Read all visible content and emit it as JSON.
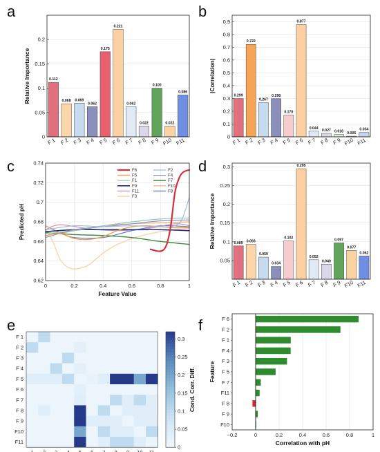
{
  "chart_data": [
    {
      "panel": "a",
      "type": "bar",
      "ylabel": "Relative Importance",
      "ylim": [
        0,
        0.25
      ],
      "yticks": [
        0,
        0.05,
        0.1,
        0.15,
        0.2
      ],
      "categories": [
        "F 1",
        "F 2",
        "F 3",
        "F 4",
        "F 5",
        "F 6",
        "F 7",
        "F 8",
        "F 9",
        "F10",
        "F11"
      ],
      "values": [
        0.112,
        0.068,
        0.069,
        0.062,
        0.175,
        0.221,
        0.062,
        0.022,
        0.1,
        0.022,
        0.086
      ],
      "labels": [
        "0.112",
        "0.068",
        "0.069",
        "0.062",
        "0.175",
        "0.221",
        "0.062",
        "0.022",
        "0.100",
        "0.022",
        "0.086"
      ],
      "colors": [
        "#e0707e",
        "#fcd6a8",
        "#c6dbee",
        "#8a8fbb",
        "#e8606e",
        "#fcd0a0",
        "#dfeaf4",
        "#dad7ea",
        "#62a45c",
        "#fbd2a0",
        "#6f8fe4"
      ],
      "grid": true
    },
    {
      "panel": "b",
      "type": "bar",
      "ylabel": "|Correlation|",
      "ylim": [
        0,
        0.95
      ],
      "yticks": [
        0,
        0.1,
        0.2,
        0.3,
        0.4,
        0.5,
        0.6,
        0.7,
        0.8,
        0.9
      ],
      "categories": [
        "F 1",
        "F 2",
        "F 3",
        "F 4",
        "F 5",
        "F 6",
        "F 7",
        "F 8",
        "F 9",
        "F10",
        "F11"
      ],
      "values": [
        0.299,
        0.722,
        0.267,
        0.298,
        0.17,
        0.877,
        0.044,
        0.027,
        0.018,
        0.005,
        0.034
      ],
      "labels": [
        "0.299",
        "0.722",
        "0.267",
        "0.298",
        "0.170",
        "0.877",
        "0.044",
        "0.027",
        "0.018",
        "0.005",
        "0.034"
      ],
      "colors": [
        "#e0707e",
        "#f6a455",
        "#c6dbee",
        "#8a8fbb",
        "#f8cccc",
        "#fcd0a0",
        "#dfeaf4",
        "#dad7ea",
        "#d9efd6",
        "#fbd9b0",
        "#c6d4f4"
      ],
      "grid": true
    },
    {
      "panel": "c",
      "type": "line",
      "xlabel": "Feature Value",
      "ylabel": "Predicted pH",
      "xlim": [
        0,
        1
      ],
      "ylim": [
        0.62,
        0.74
      ],
      "xticks": [
        0,
        0.2,
        0.4,
        0.6,
        0.8,
        1
      ],
      "yticks": [
        0.62,
        0.64,
        0.66,
        0.68,
        0.7,
        0.72,
        0.74
      ],
      "legend_position": "top-right",
      "legend_order": [
        "F6",
        "F2",
        "F5",
        "F4",
        "F1",
        "F7",
        "F9",
        "F10",
        "F11",
        "F8",
        "F3"
      ],
      "series": [
        {
          "name": "F6",
          "color": "#d4313c",
          "width": 2.2,
          "x": [
            0.73,
            0.8,
            0.84,
            0.87,
            0.9,
            0.93,
            0.96,
            1.0
          ],
          "y": [
            0.652,
            0.65,
            0.656,
            0.675,
            0.71,
            0.725,
            0.731,
            0.733
          ]
        },
        {
          "name": "F2",
          "color": "#9bbde0",
          "width": 1.2,
          "x": [
            0.0,
            0.2,
            0.4,
            0.6,
            0.8,
            0.9,
            0.95,
            1.0
          ],
          "y": [
            0.672,
            0.676,
            0.675,
            0.676,
            0.675,
            0.676,
            0.683,
            0.705
          ]
        },
        {
          "name": "F5",
          "color": "#f49a4d",
          "width": 1.4,
          "x": [
            0.0,
            0.1,
            0.2,
            0.3,
            0.4,
            0.5,
            0.6,
            0.7,
            0.8,
            0.9,
            1.0
          ],
          "y": [
            0.666,
            0.668,
            0.663,
            0.662,
            0.665,
            0.671,
            0.675,
            0.676,
            0.675,
            0.674,
            0.674
          ]
        },
        {
          "name": "F4",
          "color": "#8a8fbb",
          "width": 1.2,
          "x": [
            0.0,
            0.2,
            0.4,
            0.6,
            0.8,
            1.0
          ],
          "y": [
            0.664,
            0.672,
            0.675,
            0.678,
            0.681,
            0.682
          ]
        },
        {
          "name": "F1",
          "color": "#8fc8c0",
          "width": 1.2,
          "x": [
            0.0,
            0.2,
            0.4,
            0.6,
            0.8,
            1.0
          ],
          "y": [
            0.668,
            0.671,
            0.676,
            0.68,
            0.683,
            0.684
          ]
        },
        {
          "name": "F7",
          "color": "#3d8a3d",
          "width": 1.4,
          "x": [
            0.0,
            0.2,
            0.4,
            0.6,
            0.8,
            1.0
          ],
          "y": [
            0.669,
            0.667,
            0.666,
            0.664,
            0.66,
            0.657
          ]
        },
        {
          "name": "F9",
          "color": "#1f2f7a",
          "width": 1.6,
          "x": [
            0.0,
            0.2,
            0.4,
            0.6,
            0.8,
            1.0
          ],
          "y": [
            0.67,
            0.672,
            0.672,
            0.672,
            0.672,
            0.671
          ]
        },
        {
          "name": "F10",
          "color": "#f0a868",
          "width": 1.2,
          "x": [
            0.0,
            0.1,
            0.2,
            0.4,
            0.6,
            0.8,
            1.0
          ],
          "y": [
            0.676,
            0.669,
            0.671,
            0.676,
            0.678,
            0.679,
            0.68
          ]
        },
        {
          "name": "F11",
          "color": "#d98cae",
          "width": 1.2,
          "x": [
            0.0,
            0.1,
            0.3,
            0.5,
            0.7,
            0.9,
            1.0
          ],
          "y": [
            0.672,
            0.677,
            0.673,
            0.671,
            0.673,
            0.678,
            0.676
          ]
        },
        {
          "name": "F8",
          "color": "#5a78d4",
          "width": 1.2,
          "x": [
            0.0,
            0.1,
            0.2,
            0.4,
            0.6,
            0.8,
            1.0
          ],
          "y": [
            0.676,
            0.669,
            0.664,
            0.664,
            0.671,
            0.676,
            0.675
          ]
        },
        {
          "name": "F3",
          "color": "#fbd4a8",
          "width": 1.4,
          "x": [
            0.0,
            0.05,
            0.1,
            0.15,
            0.2,
            0.25,
            0.3,
            0.35,
            0.4,
            0.45,
            0.5,
            0.55,
            0.6,
            0.7,
            0.8,
            0.9,
            1.0
          ],
          "y": [
            0.673,
            0.66,
            0.642,
            0.634,
            0.632,
            0.633,
            0.636,
            0.642,
            0.648,
            0.653,
            0.657,
            0.66,
            0.663,
            0.667,
            0.67,
            0.672,
            0.673
          ]
        }
      ],
      "grid": true
    },
    {
      "panel": "d",
      "type": "bar",
      "ylabel": "Relative Importance",
      "ylim": [
        0,
        0.31
      ],
      "yticks": [
        0.05,
        0.1,
        0.15,
        0.2,
        0.25,
        0.3
      ],
      "categories": [
        "F 1",
        "F 2",
        "F 3",
        "F 4",
        "F 5",
        "F 6",
        "F 7",
        "F 8",
        "F 9",
        "F10",
        "F11"
      ],
      "values": [
        0.089,
        0.093,
        0.059,
        0.034,
        0.102,
        0.295,
        0.052,
        0.04,
        0.097,
        0.077,
        0.062
      ],
      "labels": [
        "0.089",
        "0.093",
        "0.059",
        "0.034",
        "0.102",
        "0.295",
        "0.052",
        "0.040",
        "0.097",
        "0.077",
        "0.062"
      ],
      "colors": [
        "#e0707e",
        "#fcd6a8",
        "#c6dbee",
        "#8a8fbb",
        "#f8cccc",
        "#fcd0a0",
        "#dfeaf4",
        "#dad7ea",
        "#62a45c",
        "#fbd2a0",
        "#6f8fe4"
      ],
      "grid": true
    },
    {
      "panel": "e",
      "type": "heatmap",
      "row_labels": [
        "F 1",
        "F 2",
        "F 3",
        "F 4",
        "F 5",
        "F 6",
        "F 7",
        "F 8",
        "F 9",
        "F10",
        "F11"
      ],
      "col_labels": [
        "1",
        "2",
        "3",
        "4",
        "5",
        "6",
        "7",
        "8",
        "9",
        "10",
        "11"
      ],
      "values": [
        [
          0.01,
          0.1,
          0.01,
          0.01,
          0.01,
          0.01,
          0.01,
          0.01,
          0.01,
          0.01,
          0.01
        ],
        [
          0.1,
          0.01,
          0.01,
          0.01,
          0.03,
          0.01,
          0.01,
          0.01,
          0.01,
          0.01,
          0.01
        ],
        [
          0.01,
          0.01,
          0.01,
          0.1,
          0.01,
          0.01,
          0.01,
          0.01,
          0.01,
          0.01,
          0.01
        ],
        [
          0.01,
          0.01,
          0.1,
          0.01,
          0.03,
          0.01,
          0.01,
          0.01,
          0.01,
          0.01,
          0.01
        ],
        [
          0.04,
          0.04,
          0.04,
          0.1,
          0.01,
          0.02,
          0.04,
          0.32,
          0.32,
          0.2,
          0.32
        ],
        [
          0.01,
          0.01,
          0.01,
          0.01,
          0.03,
          0.01,
          0.01,
          0.01,
          0.01,
          0.01,
          0.01
        ],
        [
          0.01,
          0.01,
          0.01,
          0.01,
          0.04,
          0.01,
          0.01,
          0.1,
          0.04,
          0.1,
          0.04
        ],
        [
          0.01,
          0.04,
          0.01,
          0.01,
          0.32,
          0.01,
          0.1,
          0.01,
          0.04,
          0.04,
          0.04
        ],
        [
          0.01,
          0.01,
          0.01,
          0.01,
          0.32,
          0.04,
          0.04,
          0.04,
          0.01,
          0.04,
          0.04
        ],
        [
          0.01,
          0.01,
          0.01,
          0.01,
          0.2,
          0.01,
          0.1,
          0.04,
          0.04,
          0.01,
          0.1
        ],
        [
          0.01,
          0.01,
          0.01,
          0.01,
          0.32,
          0.01,
          0.04,
          0.1,
          0.1,
          0.04,
          0.01
        ]
      ],
      "colorbar_label": "Cond. Corr. Diff.",
      "colorbar_range": [
        0,
        0.32
      ],
      "colorbar_ticks": [
        0,
        0.05,
        0.1,
        0.15,
        0.2,
        0.25,
        0.3
      ]
    },
    {
      "panel": "f",
      "type": "bar",
      "orientation": "horizontal",
      "xlabel": "Correlation with pH",
      "ylabel": "Feature",
      "xlim": [
        -0.2,
        1.0
      ],
      "xticks": [
        -0.2,
        0,
        0.2,
        0.4,
        0.6,
        0.8,
        1
      ],
      "xtick_labels": [
        "−0.2",
        "0",
        "0.2",
        "0.4",
        "0.6",
        "0.8",
        "1"
      ],
      "categories": [
        "F 6",
        "F 2",
        "F 1",
        "F 4",
        "F 3",
        "F 5",
        "F 7",
        "F11",
        "F 8",
        "F 9",
        "F10"
      ],
      "values": [
        0.877,
        0.722,
        0.299,
        0.298,
        0.267,
        0.17,
        0.044,
        0.034,
        -0.027,
        0.018,
        0.005
      ],
      "positive_color": "#2e8b2e",
      "negative_color": "#d42a2a",
      "grid": true
    }
  ],
  "panel_labels": [
    "a",
    "b",
    "c",
    "d",
    "e",
    "f"
  ]
}
